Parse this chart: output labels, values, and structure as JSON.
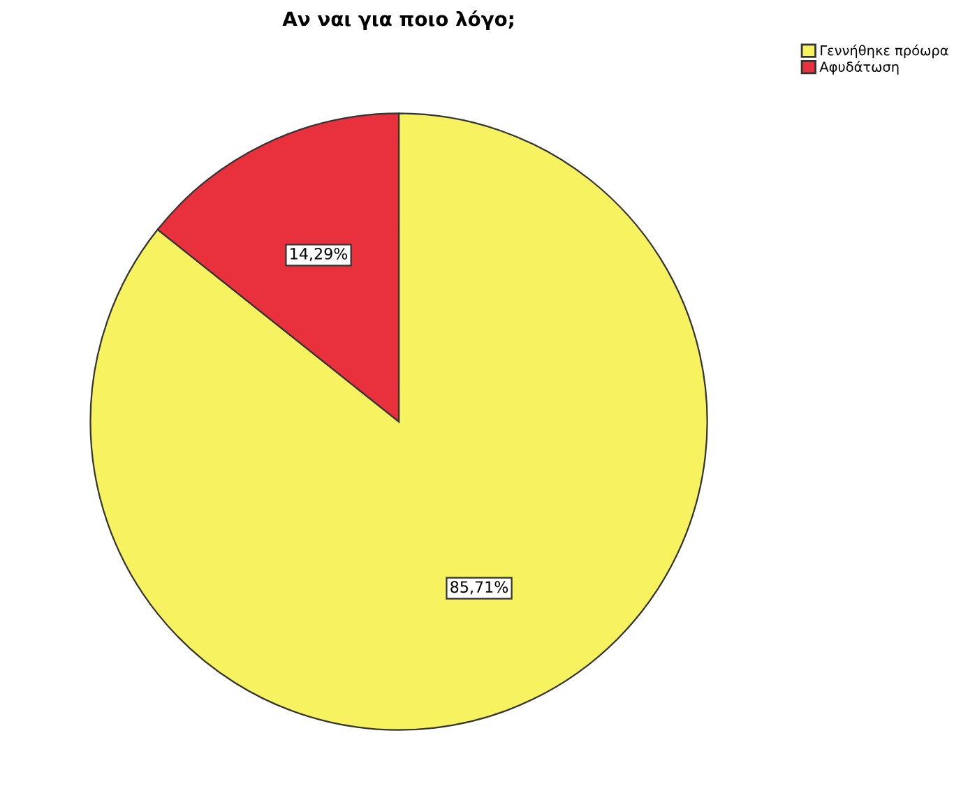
{
  "chart_data": {
    "type": "pie",
    "title": "Αν ναι για ποιο λόγο;",
    "categories": [
      "Γεννήθηκε πρόωρα",
      "Αφυδάτωση"
    ],
    "values": [
      85.71,
      14.29
    ],
    "colors": [
      "#f7f25f",
      "#e8313c"
    ],
    "value_labels": [
      "85,71%",
      "14,29%"
    ],
    "legend": "top right"
  }
}
